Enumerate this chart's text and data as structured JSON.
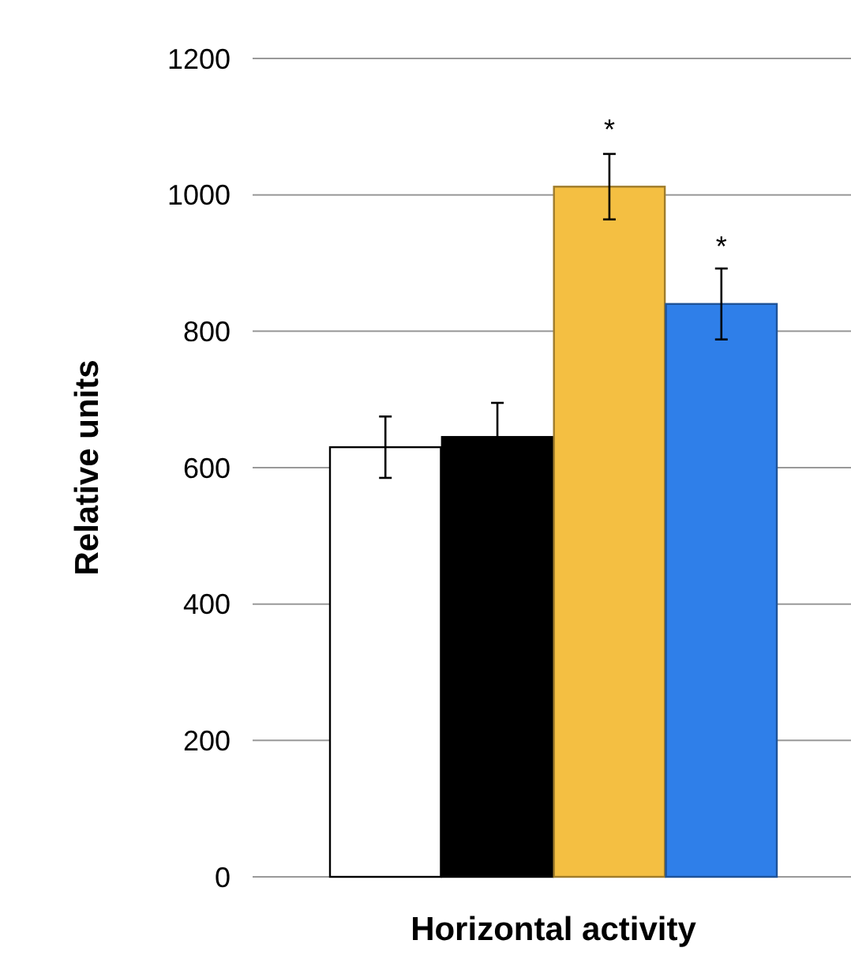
{
  "chart_data": {
    "type": "bar",
    "categories": [
      null,
      null,
      null,
      null
    ],
    "xlabel": "Horizontal activity",
    "ylabel": "Relative units",
    "values": [
      630,
      645,
      1012,
      840
    ],
    "colors": [
      "#ffffff",
      "#000000",
      "#f4bf42",
      "#2f7fe9"
    ],
    "errors": [
      45,
      50,
      48,
      52
    ],
    "ylim": [
      0,
      1200
    ],
    "yticks": [
      0,
      200,
      400,
      600,
      800,
      1000,
      1200
    ],
    "grid": "y",
    "annotations": [
      {
        "text": "*",
        "y": 1063
      },
      {
        "text": "*",
        "y": 892
      }
    ]
  }
}
